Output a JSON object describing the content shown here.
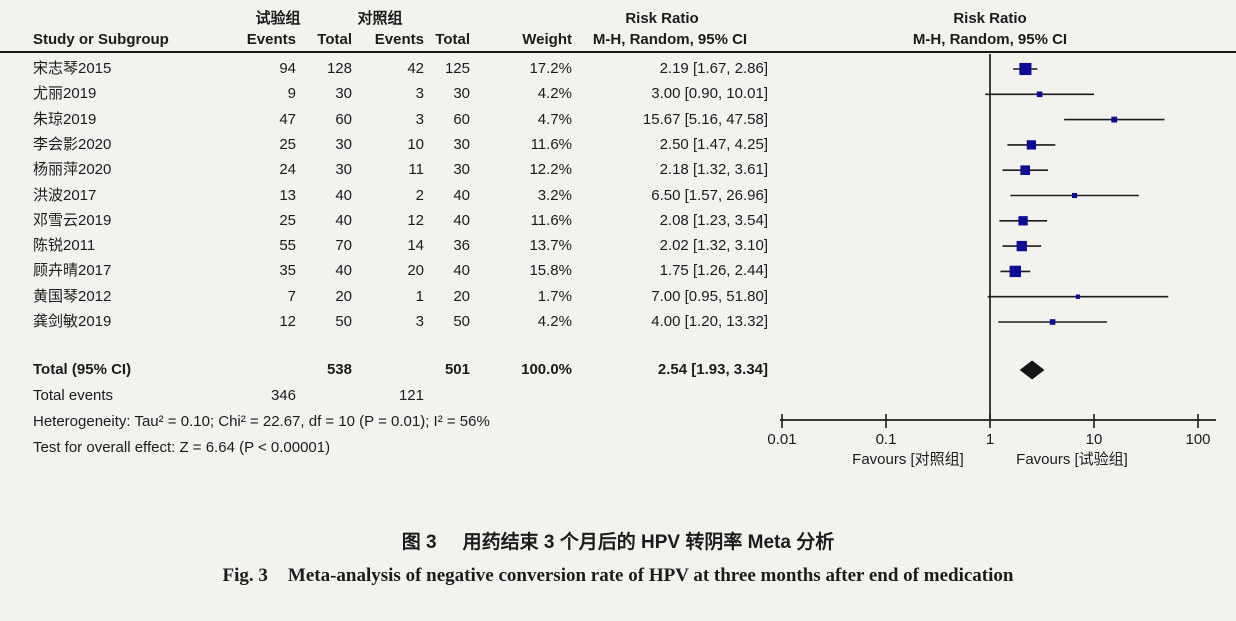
{
  "figure": {
    "bg": "#f4f2ee",
    "ink": "#1c1c1c",
    "marker_color": "#0c0c96",
    "diamond_color": "#141414"
  },
  "header": {
    "group_experimental": "试验组",
    "group_control": "对照组",
    "risk_ratio": "Risk Ratio",
    "method": "M-H, Random, 95% CI",
    "study_col": "Study or Subgroup",
    "events_col": "Events",
    "total_col": "Total",
    "events2_col": "Events",
    "total2_col": "Total",
    "weight_col": "Weight"
  },
  "chart_data": {
    "type": "forest",
    "effect_measure": "Risk Ratio",
    "model": "M-H, Random, 95% CI",
    "x_axis": {
      "scale": "log",
      "ticks": [
        0.01,
        0.1,
        1,
        10,
        100
      ],
      "tick_labels": [
        "0.01",
        "0.1",
        "1",
        "10",
        "100"
      ],
      "null_line": 1
    },
    "studies": [
      {
        "name": "宋志琴2015",
        "exp_events": 94,
        "exp_total": 128,
        "ctrl_events": 42,
        "ctrl_total": 125,
        "weight_pct": 17.2,
        "rr": 2.19,
        "ci_low": 1.67,
        "ci_high": 2.86,
        "rr_label": "2.19 [1.67, 2.86]"
      },
      {
        "name": "尤丽2019",
        "exp_events": 9,
        "exp_total": 30,
        "ctrl_events": 3,
        "ctrl_total": 30,
        "weight_pct": 4.2,
        "rr": 3.0,
        "ci_low": 0.9,
        "ci_high": 10.01,
        "rr_label": "3.00 [0.90, 10.01]"
      },
      {
        "name": "朱琼2019",
        "exp_events": 47,
        "exp_total": 60,
        "ctrl_events": 3,
        "ctrl_total": 60,
        "weight_pct": 4.7,
        "rr": 15.67,
        "ci_low": 5.16,
        "ci_high": 47.58,
        "rr_label": "15.67 [5.16, 47.58]"
      },
      {
        "name": "李会影2020",
        "exp_events": 25,
        "exp_total": 30,
        "ctrl_events": 10,
        "ctrl_total": 30,
        "weight_pct": 11.6,
        "rr": 2.5,
        "ci_low": 1.47,
        "ci_high": 4.25,
        "rr_label": "2.50 [1.47, 4.25]"
      },
      {
        "name": "杨丽萍2020",
        "exp_events": 24,
        "exp_total": 30,
        "ctrl_events": 11,
        "ctrl_total": 30,
        "weight_pct": 12.2,
        "rr": 2.18,
        "ci_low": 1.32,
        "ci_high": 3.61,
        "rr_label": "2.18 [1.32, 3.61]"
      },
      {
        "name": "洪波2017",
        "exp_events": 13,
        "exp_total": 40,
        "ctrl_events": 2,
        "ctrl_total": 40,
        "weight_pct": 3.2,
        "rr": 6.5,
        "ci_low": 1.57,
        "ci_high": 26.96,
        "rr_label": "6.50 [1.57, 26.96]"
      },
      {
        "name": "邓雪云2019",
        "exp_events": 25,
        "exp_total": 40,
        "ctrl_events": 12,
        "ctrl_total": 40,
        "weight_pct": 11.6,
        "rr": 2.08,
        "ci_low": 1.23,
        "ci_high": 3.54,
        "rr_label": "2.08 [1.23, 3.54]"
      },
      {
        "name": "陈锐2011",
        "exp_events": 55,
        "exp_total": 70,
        "ctrl_events": 14,
        "ctrl_total": 36,
        "weight_pct": 13.7,
        "rr": 2.02,
        "ci_low": 1.32,
        "ci_high": 3.1,
        "rr_label": "2.02 [1.32, 3.10]"
      },
      {
        "name": "顾卉晴2017",
        "exp_events": 35,
        "exp_total": 40,
        "ctrl_events": 20,
        "ctrl_total": 40,
        "weight_pct": 15.8,
        "rr": 1.75,
        "ci_low": 1.26,
        "ci_high": 2.44,
        "rr_label": "1.75 [1.26, 2.44]"
      },
      {
        "name": "黄国琴2012",
        "exp_events": 7,
        "exp_total": 20,
        "ctrl_events": 1,
        "ctrl_total": 20,
        "weight_pct": 1.7,
        "rr": 7.0,
        "ci_low": 0.95,
        "ci_high": 51.8,
        "rr_label": "7.00 [0.95, 51.80]"
      },
      {
        "name": "龚剑敏2019",
        "exp_events": 12,
        "exp_total": 50,
        "ctrl_events": 3,
        "ctrl_total": 50,
        "weight_pct": 4.2,
        "rr": 4.0,
        "ci_low": 1.2,
        "ci_high": 13.32,
        "rr_label": "4.00 [1.20, 13.32]"
      }
    ],
    "total": {
      "label": "Total (95% CI)",
      "exp_total": "538",
      "ctrl_total": "501",
      "weight_label": "100.0%",
      "rr": 2.54,
      "ci_low": 1.93,
      "ci_high": 3.34,
      "rr_label": "2.54 [1.93, 3.34]"
    },
    "total_events": {
      "label": "Total events",
      "exp": "346",
      "ctrl": "121"
    },
    "favours_left": "Favours [对照组]",
    "favours_right": "Favours [试验组]"
  },
  "stats": {
    "heterogeneity": "Heterogeneity: Tau² = 0.10; Chi² = 22.67, df = 10 (P = 0.01); I² = 56%",
    "overall_effect": "Test for overall effect: Z = 6.64 (P < 0.00001)"
  },
  "caption": {
    "zh_prefix": "图 3",
    "zh_text": "用药结束 3 个月后的 HPV 转阴率 Meta 分析",
    "en_prefix": "Fig. 3",
    "en_text": "Meta-analysis of negative conversion rate of HPV at three months after end of medication"
  }
}
